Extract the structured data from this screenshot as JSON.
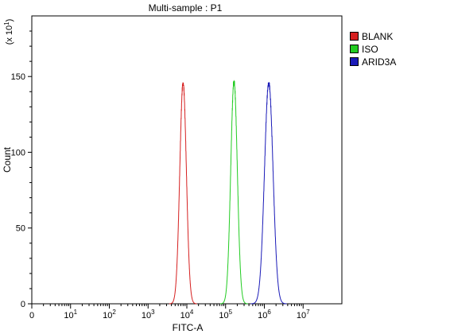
{
  "chart_data": {
    "type": "line",
    "title": "Multi-sample : P1",
    "xlabel": "FITC-A",
    "ylabel": "Count",
    "y_multiplier": "(x 10",
    "y_multiplier_exp": "1",
    "y_multiplier_close": ")",
    "x_scale": "log",
    "xlim": [
      0,
      10000000
    ],
    "ylim": [
      0,
      190
    ],
    "y_ticks": [
      0,
      50,
      100,
      150
    ],
    "x_tick_labels": [
      {
        "base": "0",
        "exp": ""
      },
      {
        "base": "10",
        "exp": "1"
      },
      {
        "base": "10",
        "exp": "2"
      },
      {
        "base": "10",
        "exp": "3"
      },
      {
        "base": "10",
        "exp": "4"
      },
      {
        "base": "10",
        "exp": "5"
      },
      {
        "base": "10",
        "exp": "6"
      },
      {
        "base": "10",
        "exp": "7"
      }
    ],
    "legend_position": "right",
    "grid": false,
    "series": [
      {
        "name": "BLANK",
        "color": "#d62020",
        "peak_x": 8000,
        "peak_y": 146
      },
      {
        "name": "ISO",
        "color": "#22cc22",
        "peak_x": 165000,
        "peak_y": 147
      },
      {
        "name": "ARID3A",
        "color": "#1a1ab8",
        "peak_x": 1300000,
        "peak_y": 146
      }
    ]
  }
}
